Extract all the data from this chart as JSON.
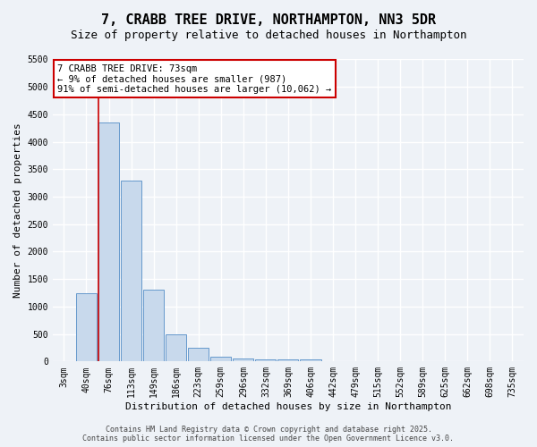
{
  "title": "7, CRABB TREE DRIVE, NORTHAMPTON, NN3 5DR",
  "subtitle": "Size of property relative to detached houses in Northampton",
  "xlabel": "Distribution of detached houses by size in Northampton",
  "ylabel": "Number of detached properties",
  "bar_color": "#c8d9ec",
  "bar_edge_color": "#6699cc",
  "categories": [
    "3sqm",
    "40sqm",
    "76sqm",
    "113sqm",
    "149sqm",
    "186sqm",
    "223sqm",
    "259sqm",
    "296sqm",
    "332sqm",
    "369sqm",
    "406sqm",
    "442sqm",
    "479sqm",
    "515sqm",
    "552sqm",
    "589sqm",
    "625sqm",
    "662sqm",
    "698sqm",
    "735sqm"
  ],
  "values": [
    0,
    1250,
    4350,
    3300,
    1300,
    500,
    250,
    90,
    60,
    40,
    30,
    30,
    0,
    0,
    0,
    0,
    0,
    0,
    0,
    0,
    0
  ],
  "ylim": [
    0,
    5500
  ],
  "yticks": [
    0,
    500,
    1000,
    1500,
    2000,
    2500,
    3000,
    3500,
    4000,
    4500,
    5000,
    5500
  ],
  "property_bar_index": 2,
  "red_line_color": "#cc0000",
  "annotation_line1": "7 CRABB TREE DRIVE: 73sqm",
  "annotation_line2": "← 9% of detached houses are smaller (987)",
  "annotation_line3": "91% of semi-detached houses are larger (10,062) →",
  "annotation_box_color": "#ffffff",
  "annotation_box_edge": "#cc0000",
  "footer_line1": "Contains HM Land Registry data © Crown copyright and database right 2025.",
  "footer_line2": "Contains public sector information licensed under the Open Government Licence v3.0.",
  "background_color": "#eef2f7",
  "grid_color": "#ffffff",
  "title_fontsize": 11,
  "subtitle_fontsize": 9,
  "xlabel_fontsize": 8,
  "ylabel_fontsize": 8,
  "tick_fontsize": 7,
  "annot_fontsize": 7.5,
  "footer_fontsize": 6
}
